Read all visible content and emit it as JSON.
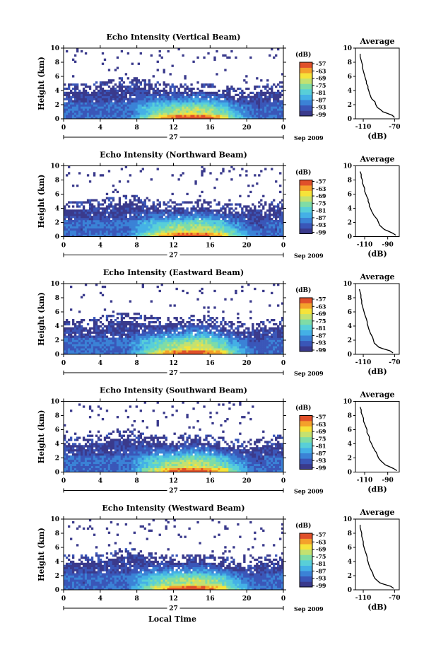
{
  "figure": {
    "xlabel": "Local Time",
    "date_label": "27",
    "month_label": "Sep 2009"
  },
  "colors": {
    "scale": [
      "#3a3a8c",
      "#3a56b8",
      "#3b82d6",
      "#44b0e6",
      "#58cfd8",
      "#7fdca6",
      "#c4e170",
      "#f6e33a",
      "#f4a12b",
      "#e0502a"
    ]
  },
  "chart_data": [
    {
      "type": "heatmap",
      "title": "Echo Intensity (Vertical Beam)",
      "ylabel": "Height (km)",
      "x_ticks": [
        "0",
        "4",
        "8",
        "12",
        "16",
        "20",
        "0"
      ],
      "xlim": [
        0,
        24
      ],
      "y_ticks": [
        "0",
        "2",
        "4",
        "6",
        "8",
        "10"
      ],
      "ylim": [
        0,
        10
      ],
      "colorbar": {
        "unit": "(dB)",
        "ticks": [
          "-57",
          "-63",
          "-69",
          "-75",
          "-81",
          "-87",
          "-93",
          "-99"
        ]
      },
      "cloud_top_km": [
        3.8,
        3.9,
        3.8,
        3.9,
        4.0,
        4.3,
        4.6,
        4.8,
        4.6,
        4.2,
        4.0,
        3.9,
        3.8,
        3.8,
        3.9,
        4.0,
        3.8,
        3.6,
        3.4,
        3.3,
        3.3,
        3.4,
        3.7,
        3.9,
        4.0
      ],
      "sparse_top_km": 10,
      "profile": {
        "title": "Average",
        "xlabel": "(dB)",
        "x_ticks": [
          "-110",
          "-70"
        ],
        "xlim": [
          -120,
          -64
        ],
        "y_ticks": [
          "0",
          "2",
          "4",
          "6",
          "8",
          "10"
        ],
        "ylim": [
          0,
          10
        ],
        "height_km": [
          0.2,
          0.5,
          0.8,
          1.0,
          1.3,
          1.6,
          2.0,
          2.4,
          2.8,
          3.0,
          3.3,
          3.6,
          4.0,
          4.3,
          4.6,
          5.0,
          5.3,
          5.6,
          6.0,
          6.4,
          6.8,
          7.2,
          7.6,
          8.0,
          8.4,
          8.8,
          9.2
        ],
        "value_db": [
          -70,
          -73,
          -80,
          -85,
          -88,
          -92,
          -94,
          -95,
          -99,
          -100,
          -101,
          -102,
          -103,
          -104,
          -104,
          -106,
          -106,
          -107,
          -108,
          -109,
          -110,
          -111,
          -111,
          -112,
          -113,
          -114,
          -114
        ]
      }
    },
    {
      "type": "heatmap",
      "title": "Echo Intensity (Northward Beam)",
      "ylabel": "Height (km)",
      "x_ticks": [
        "0",
        "4",
        "8",
        "12",
        "16",
        "20",
        "0"
      ],
      "xlim": [
        0,
        24
      ],
      "y_ticks": [
        "0",
        "2",
        "4",
        "6",
        "8",
        "10"
      ],
      "ylim": [
        0,
        10
      ],
      "colorbar": {
        "unit": "(dB)",
        "ticks": [
          "-57",
          "-63",
          "-69",
          "-75",
          "-81",
          "-87",
          "-93",
          "-99"
        ]
      },
      "cloud_top_km": [
        3.8,
        3.9,
        3.9,
        4.0,
        4.1,
        4.4,
        4.7,
        4.8,
        4.6,
        4.3,
        4.0,
        3.9,
        3.8,
        3.8,
        3.9,
        4.0,
        3.9,
        3.7,
        3.5,
        3.4,
        3.3,
        3.4,
        3.7,
        4.0,
        4.1
      ],
      "sparse_top_km": 10,
      "profile": {
        "title": "Average",
        "xlabel": "(dB)",
        "x_ticks": [
          "-110",
          "-90"
        ],
        "xlim": [
          -118,
          -80
        ],
        "y_ticks": [
          "0",
          "2",
          "4",
          "6",
          "8",
          "10"
        ],
        "ylim": [
          0,
          10
        ],
        "height_km": [
          0.2,
          0.5,
          0.8,
          1.0,
          1.3,
          1.6,
          2.0,
          2.4,
          2.8,
          3.0,
          3.3,
          3.6,
          4.0,
          4.3,
          4.6,
          5.0,
          5.3,
          5.6,
          6.0,
          6.4,
          6.8,
          7.2,
          7.6,
          8.0,
          8.4,
          8.8,
          9.2
        ],
        "value_db": [
          -83,
          -86,
          -90,
          -93,
          -95,
          -97,
          -98,
          -99,
          -101,
          -102,
          -103,
          -104,
          -105,
          -106,
          -106,
          -107,
          -107,
          -108,
          -109,
          -110,
          -110,
          -111,
          -112,
          -112,
          -113,
          -113,
          -114
        ]
      }
    },
    {
      "type": "heatmap",
      "title": "Echo Intensity (Eastward Beam)",
      "ylabel": "Height (km)",
      "x_ticks": [
        "0",
        "4",
        "8",
        "12",
        "16",
        "20",
        "0"
      ],
      "xlim": [
        0,
        24
      ],
      "y_ticks": [
        "0",
        "2",
        "4",
        "6",
        "8",
        "10"
      ],
      "ylim": [
        0,
        10
      ],
      "colorbar": {
        "unit": "(dB)",
        "ticks": [
          "-57",
          "-63",
          "-69",
          "-75",
          "-81",
          "-87",
          "-93",
          "-99"
        ]
      },
      "cloud_top_km": [
        3.8,
        3.9,
        3.8,
        3.9,
        4.1,
        4.3,
        4.6,
        4.8,
        4.6,
        4.3,
        4.1,
        4.0,
        4.0,
        4.2,
        4.4,
        4.6,
        4.3,
        3.9,
        3.6,
        3.4,
        3.3,
        3.4,
        3.7,
        3.9,
        4.0
      ],
      "sparse_top_km": 10,
      "profile": {
        "title": "Average",
        "xlabel": "(dB)",
        "x_ticks": [
          "-110",
          "-70"
        ],
        "xlim": [
          -120,
          -64
        ],
        "y_ticks": [
          "0",
          "2",
          "4",
          "6",
          "8",
          "10"
        ],
        "ylim": [
          0,
          10
        ],
        "height_km": [
          0.2,
          0.5,
          0.8,
          1.0,
          1.3,
          1.6,
          2.0,
          2.4,
          2.8,
          3.0,
          3.3,
          3.6,
          4.0,
          4.3,
          4.6,
          5.0,
          5.3,
          5.6,
          6.0,
          6.4,
          6.8,
          7.2,
          7.6,
          8.0,
          8.4,
          8.8,
          9.2
        ],
        "value_db": [
          -72,
          -76,
          -85,
          -90,
          -93,
          -96,
          -97,
          -98,
          -100,
          -101,
          -102,
          -103,
          -104,
          -105,
          -105,
          -106,
          -107,
          -108,
          -109,
          -110,
          -111,
          -112,
          -112,
          -113,
          -113,
          -114,
          -115
        ]
      }
    },
    {
      "type": "heatmap",
      "title": "Echo Intensity (Southward Beam)",
      "ylabel": "Height (km)",
      "x_ticks": [
        "0",
        "4",
        "8",
        "12",
        "16",
        "20",
        "0"
      ],
      "xlim": [
        0,
        24
      ],
      "y_ticks": [
        "0",
        "2",
        "4",
        "6",
        "8",
        "10"
      ],
      "ylim": [
        0,
        10
      ],
      "colorbar": {
        "unit": "(dB)",
        "ticks": [
          "-57",
          "-63",
          "-69",
          "-75",
          "-81",
          "-87",
          "-93",
          "-99"
        ]
      },
      "cloud_top_km": [
        3.8,
        3.9,
        3.9,
        4.0,
        4.1,
        4.3,
        4.7,
        4.9,
        4.6,
        4.3,
        4.1,
        4.0,
        3.9,
        4.0,
        4.1,
        4.2,
        4.0,
        3.8,
        3.5,
        3.4,
        3.3,
        3.5,
        3.8,
        4.0,
        4.1
      ],
      "sparse_top_km": 10,
      "profile": {
        "title": "Average",
        "xlabel": "(dB)",
        "x_ticks": [
          "-110",
          "-90"
        ],
        "xlim": [
          -118,
          -80
        ],
        "y_ticks": [
          "0",
          "2",
          "4",
          "6",
          "8",
          "10"
        ],
        "ylim": [
          0,
          10
        ],
        "height_km": [
          0.2,
          0.5,
          0.8,
          1.0,
          1.3,
          1.6,
          2.0,
          2.4,
          2.8,
          3.0,
          3.3,
          3.6,
          4.0,
          4.3,
          4.6,
          5.0,
          5.3,
          5.6,
          6.0,
          6.4,
          6.8,
          7.2,
          7.6,
          8.0,
          8.4,
          8.8,
          9.2
        ],
        "value_db": [
          -82,
          -85,
          -89,
          -92,
          -94,
          -96,
          -98,
          -99,
          -100,
          -101,
          -102,
          -103,
          -104,
          -105,
          -106,
          -106,
          -107,
          -108,
          -108,
          -109,
          -110,
          -111,
          -111,
          -112,
          -113,
          -113,
          -114
        ]
      }
    },
    {
      "type": "heatmap",
      "title": "Echo Intensity (Westward Beam)",
      "ylabel": "Height (km)",
      "x_ticks": [
        "0",
        "4",
        "8",
        "12",
        "16",
        "20",
        "0"
      ],
      "xlim": [
        0,
        24
      ],
      "y_ticks": [
        "0",
        "2",
        "4",
        "6",
        "8",
        "10"
      ],
      "ylim": [
        0,
        10
      ],
      "colorbar": {
        "unit": "(dB)",
        "ticks": [
          "-57",
          "-63",
          "-69",
          "-75",
          "-81",
          "-87",
          "-93",
          "-99"
        ]
      },
      "cloud_top_km": [
        3.8,
        3.8,
        3.8,
        3.9,
        4.0,
        4.3,
        4.6,
        4.8,
        4.5,
        4.2,
        4.0,
        3.9,
        3.8,
        3.8,
        3.9,
        4.0,
        3.8,
        3.6,
        3.4,
        3.3,
        3.3,
        3.4,
        3.7,
        3.9,
        4.0
      ],
      "sparse_top_km": 10,
      "profile": {
        "title": "Average",
        "xlabel": "(dB)",
        "x_ticks": [
          "-110",
          "-70"
        ],
        "xlim": [
          -120,
          -64
        ],
        "y_ticks": [
          "0",
          "2",
          "4",
          "6",
          "8",
          "10"
        ],
        "ylim": [
          0,
          10
        ],
        "height_km": [
          0.2,
          0.5,
          0.8,
          1.0,
          1.3,
          1.6,
          2.0,
          2.4,
          2.8,
          3.0,
          3.3,
          3.6,
          4.0,
          4.3,
          4.6,
          5.0,
          5.3,
          5.6,
          6.0,
          6.4,
          6.8,
          7.2,
          7.6,
          8.0,
          8.4,
          8.8,
          9.2
        ],
        "value_db": [
          -71,
          -75,
          -84,
          -89,
          -92,
          -95,
          -97,
          -98,
          -100,
          -101,
          -102,
          -103,
          -104,
          -105,
          -105,
          -106,
          -107,
          -108,
          -109,
          -110,
          -110,
          -111,
          -112,
          -112,
          -113,
          -114,
          -114
        ]
      }
    }
  ]
}
